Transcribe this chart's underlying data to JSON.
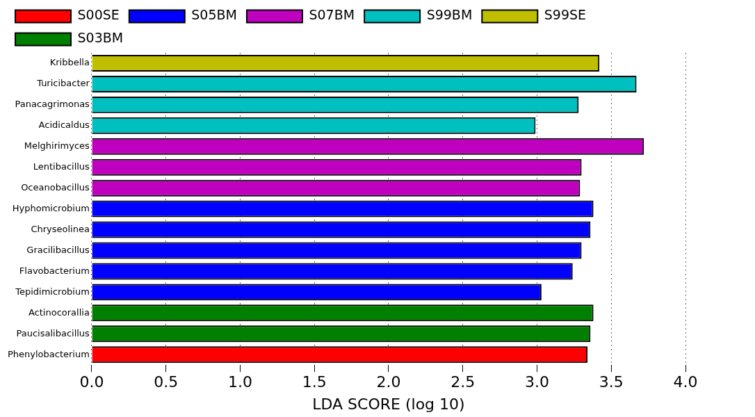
{
  "chart_data": {
    "type": "bar",
    "orientation": "horizontal",
    "xlabel": "LDA SCORE (log 10)",
    "categories": [
      "Kribbella",
      "Turicibacter",
      "Panacagrimonas",
      "Acidicaldus",
      "Melghirimyces",
      "Lentibacillus",
      "Oceanobacillus",
      "Hyphomicrobium",
      "Chryseolinea",
      "Gracilibacillus",
      "Flavobacterium",
      "Tepidimicrobium",
      "Actinocorallia",
      "Paucisalibacillus",
      "Phenylobacterium"
    ],
    "series": [
      {
        "name": "S00SE",
        "color": "#ff0000",
        "values": [
          null,
          null,
          null,
          null,
          null,
          null,
          null,
          null,
          null,
          null,
          null,
          null,
          null,
          null,
          3.34
        ]
      },
      {
        "name": "S05BM",
        "color": "#0000ff",
        "values": [
          null,
          null,
          null,
          null,
          null,
          null,
          null,
          3.38,
          3.36,
          3.3,
          3.24,
          3.03,
          null,
          null,
          null
        ]
      },
      {
        "name": "S07BM",
        "color": "#bf00bf",
        "values": [
          null,
          null,
          null,
          null,
          3.72,
          3.3,
          3.29,
          null,
          null,
          null,
          null,
          null,
          null,
          null,
          null
        ]
      },
      {
        "name": "S99BM",
        "color": "#00bfbf",
        "values": [
          null,
          3.67,
          3.28,
          2.99,
          null,
          null,
          null,
          null,
          null,
          null,
          null,
          null,
          null,
          null,
          null
        ]
      },
      {
        "name": "S99SE",
        "color": "#bfbf00",
        "values": [
          3.42,
          null,
          null,
          null,
          null,
          null,
          null,
          null,
          null,
          null,
          null,
          null,
          null,
          null,
          null
        ]
      },
      {
        "name": "S03BM",
        "color": "#007f00",
        "values": [
          null,
          null,
          null,
          null,
          null,
          null,
          null,
          null,
          null,
          null,
          null,
          null,
          3.38,
          3.36,
          null
        ]
      }
    ],
    "xlim": [
      0,
      4
    ],
    "xticks": [
      {
        "value": 0,
        "label": "0.0"
      },
      0.5,
      {
        "value": 1,
        "label": "1.0"
      },
      1.5,
      {
        "value": 2,
        "label": "2.0"
      },
      2.5,
      {
        "value": 3,
        "label": "3.0"
      },
      3.5,
      {
        "value": 4,
        "label": "4.0"
      }
    ],
    "grid": "x",
    "legend": "top"
  }
}
